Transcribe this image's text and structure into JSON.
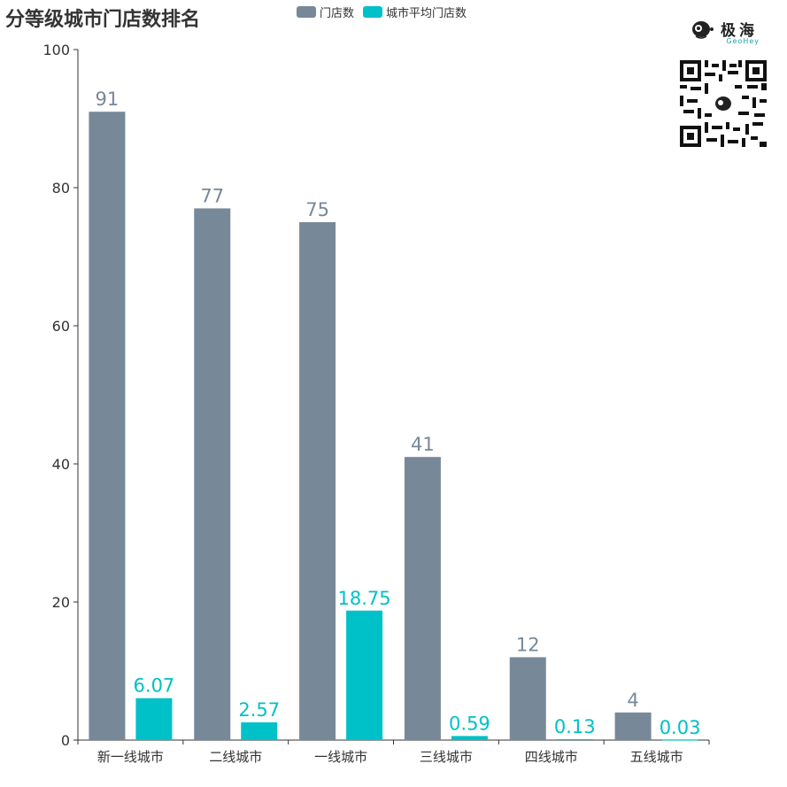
{
  "title": "分等级城市门店数排名",
  "brand": {
    "name": "极海",
    "sub": "GeoHey"
  },
  "colors": {
    "store": "#778899",
    "avg": "#00c0c8",
    "axis": "#333333"
  },
  "chart_data": {
    "type": "bar",
    "categories": [
      "新一线城市",
      "二线城市",
      "一线城市",
      "三线城市",
      "四线城市",
      "五线城市"
    ],
    "series": [
      {
        "name": "门店数",
        "values": [
          91,
          77,
          75,
          41,
          12,
          4
        ],
        "labels": [
          "91",
          "77",
          "75",
          "41",
          "12",
          "4"
        ]
      },
      {
        "name": "城市平均门店数",
        "values": [
          6.07,
          2.57,
          18.75,
          0.59,
          0.13,
          0.03
        ],
        "labels": [
          "6.07",
          "2.57",
          "18.75",
          "0.59",
          "0.13",
          "0.03"
        ]
      }
    ],
    "ylim": [
      0,
      100
    ],
    "yticks": [
      "0",
      "20",
      "40",
      "60",
      "80",
      "100"
    ],
    "legend_position": "top",
    "grid": false
  }
}
